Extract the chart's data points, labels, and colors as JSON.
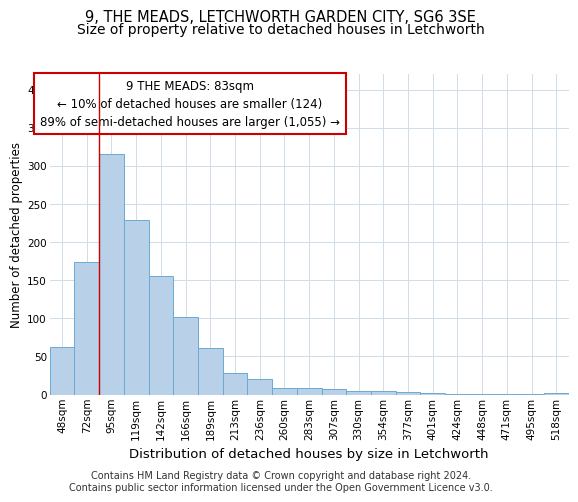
{
  "title1": "9, THE MEADS, LETCHWORTH GARDEN CITY, SG6 3SE",
  "title2": "Size of property relative to detached houses in Letchworth",
  "xlabel": "Distribution of detached houses by size in Letchworth",
  "ylabel": "Number of detached properties",
  "categories": [
    "48sqm",
    "72sqm",
    "95sqm",
    "119sqm",
    "142sqm",
    "166sqm",
    "189sqm",
    "213sqm",
    "236sqm",
    "260sqm",
    "283sqm",
    "307sqm",
    "330sqm",
    "354sqm",
    "377sqm",
    "401sqm",
    "424sqm",
    "448sqm",
    "471sqm",
    "495sqm",
    "518sqm"
  ],
  "values": [
    62,
    174,
    315,
    229,
    156,
    102,
    61,
    28,
    21,
    8,
    9,
    7,
    5,
    4,
    3,
    2,
    1,
    1,
    1,
    1,
    2
  ],
  "bar_color": "#b8d0e8",
  "bar_edge_color": "#6aaad4",
  "grid_color": "#d0dce8",
  "vline_x": 1.5,
  "vline_color": "#cc0000",
  "annotation_text": "9 THE MEADS: 83sqm\n← 10% of detached houses are smaller (124)\n89% of semi-detached houses are larger (1,055) →",
  "annotation_box_color": "#ffffff",
  "annotation_box_edge": "#cc0000",
  "ylim": [
    0,
    420
  ],
  "yticks": [
    0,
    50,
    100,
    150,
    200,
    250,
    300,
    350,
    400
  ],
  "footer": "Contains HM Land Registry data © Crown copyright and database right 2024.\nContains public sector information licensed under the Open Government Licence v3.0.",
  "title1_fontsize": 10.5,
  "title2_fontsize": 10,
  "xlabel_fontsize": 9.5,
  "ylabel_fontsize": 8.5,
  "tick_fontsize": 7.5,
  "annotation_fontsize": 8.5,
  "footer_fontsize": 7
}
